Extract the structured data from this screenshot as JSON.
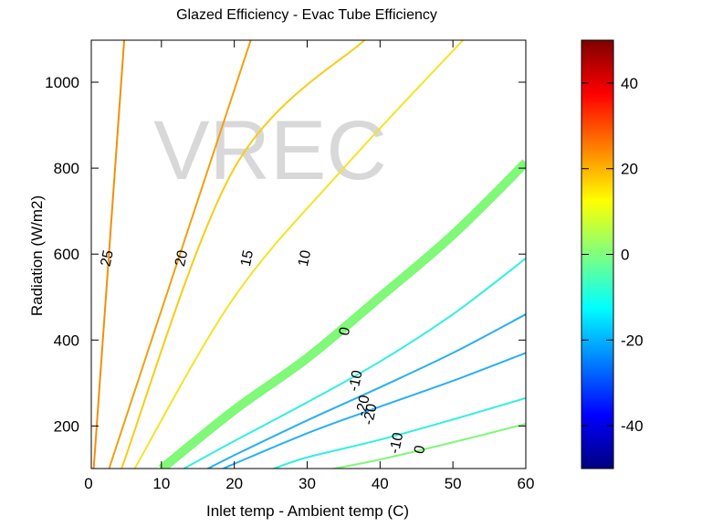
{
  "chart_data": {
    "type": "contour",
    "title": "Glazed Efficiency - Evac Tube Efficiency",
    "xlabel": "Inlet temp - Ambient temp (C)",
    "ylabel": "Radiation (W/m2)",
    "watermark": "VREC",
    "xlim": [
      0,
      60
    ],
    "ylim": [
      100,
      1100
    ],
    "x_ticks": [
      0,
      10,
      20,
      30,
      40,
      50,
      60
    ],
    "y_ticks": [
      200,
      400,
      600,
      800,
      1000
    ],
    "colorbar": {
      "range": [
        -50,
        50
      ],
      "ticks": [
        40,
        20,
        0,
        -20,
        -40
      ],
      "colormap": "jet"
    },
    "contours": [
      {
        "level": 25,
        "label": "25",
        "color": "#f0900a",
        "width": 2,
        "points": [
          [
            0.7,
            100
          ],
          [
            4.9,
            1100
          ]
        ],
        "label_at": [
          2.6,
          590
        ]
      },
      {
        "level": 20,
        "label": "20",
        "color": "#f0a010",
        "width": 2,
        "points": [
          [
            2.8,
            100
          ],
          [
            22.3,
            1100
          ]
        ],
        "label_at": [
          12.8,
          590
        ]
      },
      {
        "level": 15,
        "label": "15",
        "color": "#f8cc16",
        "width": 2,
        "points": [
          [
            4.5,
            100
          ],
          [
            20,
            800
          ],
          [
            38,
            1100
          ]
        ],
        "label_at": [
          21.8,
          590
        ]
      },
      {
        "level": 10,
        "label": "10",
        "color": "#f4e426",
        "width": 2,
        "points": [
          [
            6.3,
            100
          ],
          [
            20,
            500
          ],
          [
            35,
            800
          ],
          [
            51.5,
            1100
          ]
        ],
        "label_at": [
          29.7,
          590
        ]
      },
      {
        "level": 0,
        "label": "0",
        "color": "#80f878",
        "width": 10,
        "points": [
          [
            10,
            100
          ],
          [
            20,
            237
          ],
          [
            30,
            358
          ],
          [
            40,
            500
          ],
          [
            50,
            645
          ],
          [
            60,
            813
          ]
        ],
        "label_at": [
          35.2,
          420
        ]
      },
      {
        "level": -10,
        "label": "-10",
        "color": "#30f0e0",
        "width": 2,
        "points": [
          [
            13,
            100
          ],
          [
            20,
            165
          ],
          [
            30,
            255
          ],
          [
            40,
            350
          ],
          [
            50,
            460
          ],
          [
            60,
            590
          ]
        ],
        "label_at": [
          36.7,
          305
        ]
      },
      {
        "level": -20,
        "label": "-20",
        "color": "#28b0f0",
        "width": 2,
        "points": [
          [
            16.3,
            100
          ],
          [
            20,
            132
          ],
          [
            30,
            213
          ],
          [
            40,
            290
          ],
          [
            50,
            370
          ],
          [
            60,
            460
          ]
        ],
        "label_at": [
          37.7,
          247
        ]
      },
      {
        "level": -20,
        "label": "-20",
        "color": "#28b0f0",
        "width": 2,
        "points": [
          [
            18.4,
            100
          ],
          [
            20,
            112
          ],
          [
            30,
            183
          ],
          [
            40,
            245
          ],
          [
            50,
            305
          ],
          [
            60,
            370
          ]
        ],
        "label_at": [
          38.7,
          227
        ]
      },
      {
        "level": -10,
        "label": "-10",
        "color": "#30f0e0",
        "width": 2,
        "points": [
          [
            25.3,
            100
          ],
          [
            30,
            127
          ],
          [
            40,
            168
          ],
          [
            50,
            215
          ],
          [
            60,
            265
          ]
        ],
        "label_at": [
          42.3,
          160
        ]
      },
      {
        "level": 0,
        "label": "0",
        "color": "#80f878",
        "width": 2,
        "points": [
          [
            33.4,
            100
          ],
          [
            40,
            122
          ],
          [
            50,
            162
          ],
          [
            60,
            205
          ]
        ],
        "label_at": [
          45.5,
          145
        ]
      }
    ]
  }
}
